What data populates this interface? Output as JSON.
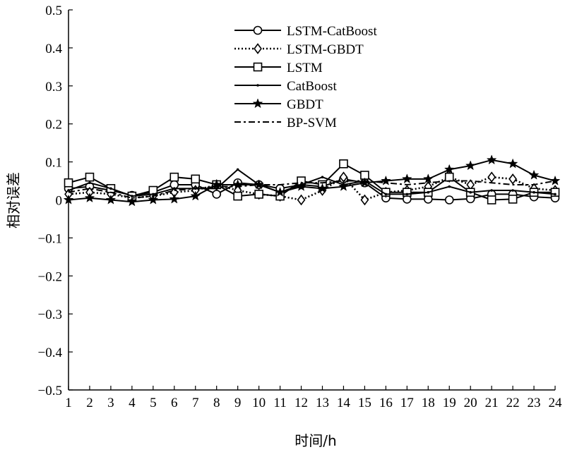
{
  "chart_data": {
    "type": "line",
    "xlabel": "时间/h",
    "ylabel": "相对误差",
    "x": [
      1,
      2,
      3,
      4,
      5,
      6,
      7,
      8,
      9,
      10,
      11,
      12,
      13,
      14,
      15,
      16,
      17,
      18,
      19,
      20,
      21,
      22,
      23,
      24
    ],
    "x_ticks": [
      "1",
      "2",
      "3",
      "4",
      "5",
      "6",
      "7",
      "8",
      "9",
      "10",
      "11",
      "12",
      "13",
      "14",
      "15",
      "16",
      "17",
      "18",
      "19",
      "20",
      "21",
      "22",
      "23",
      "24"
    ],
    "ylim": [
      -0.5,
      0.5
    ],
    "y_ticks": [
      "0.5",
      "0.4",
      "0.3",
      "0.2",
      "0.1",
      "0",
      "−0.1",
      "−0.2",
      "−0.3",
      "−0.4",
      "−0.5"
    ],
    "grid": false,
    "legend_position": "top-center",
    "series": [
      {
        "name": "LSTM-CatBoost",
        "marker": "circle",
        "line": "solid",
        "values": [
          0.03,
          0.035,
          0.025,
          0.012,
          0.02,
          0.04,
          0.04,
          0.015,
          0.045,
          0.04,
          0.03,
          0.04,
          0.035,
          0.055,
          0.045,
          0.005,
          0.002,
          0.002,
          0.0,
          0.003,
          0.015,
          0.015,
          0.008,
          0.005
        ]
      },
      {
        "name": "LSTM-GBDT",
        "marker": "diamond",
        "line": "dotted",
        "values": [
          0.015,
          0.02,
          0.015,
          0.005,
          0.01,
          0.02,
          0.025,
          0.04,
          0.025,
          0.015,
          0.01,
          0.0,
          0.025,
          0.06,
          0.0,
          0.02,
          0.025,
          0.035,
          0.06,
          0.04,
          0.06,
          0.055,
          0.03,
          0.025
        ]
      },
      {
        "name": "LSTM",
        "marker": "square",
        "line": "solid",
        "values": [
          0.045,
          0.06,
          0.03,
          0.01,
          0.025,
          0.06,
          0.055,
          0.04,
          0.01,
          0.015,
          0.01,
          0.05,
          0.04,
          0.095,
          0.065,
          0.02,
          0.02,
          0.02,
          0.06,
          0.02,
          0.0,
          0.002,
          0.02,
          0.02
        ]
      },
      {
        "name": "CatBoost",
        "marker": "dot",
        "line": "solid",
        "values": [
          0.025,
          0.045,
          0.03,
          0.01,
          0.015,
          0.03,
          0.03,
          0.03,
          0.08,
          0.04,
          0.02,
          0.04,
          0.06,
          0.04,
          0.05,
          0.015,
          0.015,
          0.02,
          0.035,
          0.02,
          0.025,
          0.025,
          0.02,
          0.015
        ]
      },
      {
        "name": "GBDT",
        "marker": "star",
        "line": "solid",
        "values": [
          0.0,
          0.005,
          0.0,
          -0.005,
          0.0,
          0.002,
          0.01,
          0.04,
          0.04,
          0.04,
          0.02,
          0.035,
          0.03,
          0.035,
          0.045,
          0.05,
          0.055,
          0.055,
          0.08,
          0.09,
          0.105,
          0.095,
          0.065,
          0.05
        ]
      },
      {
        "name": "BP-SVM",
        "marker": "none",
        "line": "dashdot",
        "values": [
          0.02,
          0.03,
          0.02,
          0.005,
          0.01,
          0.025,
          0.03,
          0.035,
          0.035,
          0.04,
          0.04,
          0.045,
          0.045,
          0.05,
          0.05,
          0.045,
          0.04,
          0.045,
          0.05,
          0.05,
          0.045,
          0.04,
          0.04,
          0.05
        ]
      }
    ]
  }
}
